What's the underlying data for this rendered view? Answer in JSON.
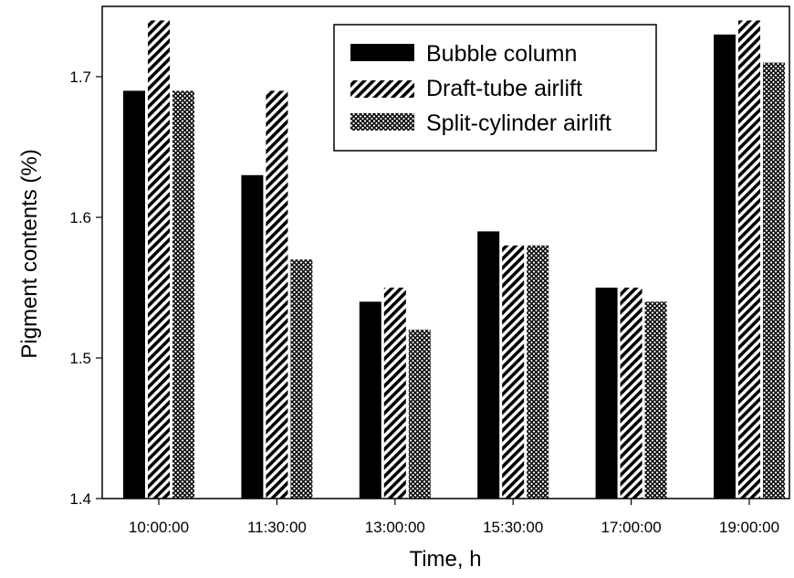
{
  "chart_data": {
    "type": "bar",
    "title": "",
    "xlabel": "Time, h",
    "ylabel": "Pigment contents (%)",
    "ylim": [
      1.4,
      1.75
    ],
    "yticks": [
      "1.4",
      "1.5",
      "1.6",
      "1.7"
    ],
    "categories": [
      "10:00:00",
      "11:30:00",
      "13:00:00",
      "15:30:00",
      "17:00:00",
      "19:00:00"
    ],
    "series": [
      {
        "name": "Bubble column",
        "pattern": "solid",
        "values": [
          1.69,
          1.63,
          1.54,
          1.59,
          1.55,
          1.73
        ]
      },
      {
        "name": "Draft-tube airlift",
        "pattern": "diagonal-hatch",
        "values": [
          1.74,
          1.69,
          1.55,
          1.58,
          1.55,
          1.74
        ]
      },
      {
        "name": "Split-cylinder airlift",
        "pattern": "crosshatch",
        "values": [
          1.69,
          1.57,
          1.52,
          1.58,
          1.54,
          1.71
        ]
      }
    ],
    "legend_position": "top-right",
    "grid": false,
    "colors": {
      "bar_fill": "#000000",
      "background": "#ffffff"
    }
  }
}
